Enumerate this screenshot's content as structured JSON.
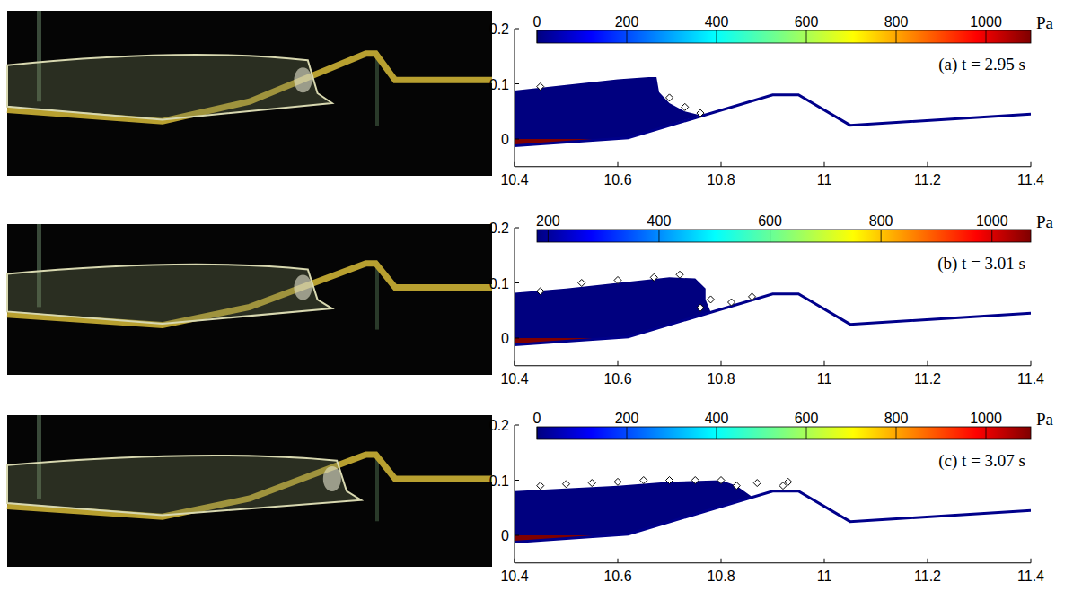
{
  "chart_data": [
    {
      "type": "scatter",
      "annotation": "(a) t = 2.95 s",
      "xlim": [
        10.4,
        11.4
      ],
      "ylim": [
        -0.05,
        0.2
      ],
      "xticks": [
        10.4,
        10.6,
        10.8,
        11,
        11.2,
        11.4
      ],
      "yticks": [
        0,
        0.1,
        0.2
      ],
      "colorbar": {
        "lim": [
          0,
          1100
        ],
        "ticks": [
          0,
          200,
          400,
          600,
          800,
          1000
        ],
        "label": "Pa"
      },
      "series": [
        {
          "type": "area",
          "x": [
            10.4,
            10.5,
            10.6,
            10.66,
            10.675,
            10.68,
            10.7,
            10.73,
            10.76
          ],
          "values": [
            0.088,
            0.098,
            0.108,
            0.112,
            0.112,
            0.085,
            0.065,
            0.05,
            0.043
          ]
        },
        {
          "type": "line",
          "color": "#00008b",
          "line_style": "solid",
          "x": [
            10.4,
            10.62,
            10.9,
            10.95,
            11.05,
            11.4
          ],
          "values": [
            -0.012,
            0.002,
            0.08,
            0.08,
            0.025,
            0.045
          ]
        },
        {
          "type": "scatter",
          "color": "#000000",
          "marker": "diamond",
          "x": [
            10.45,
            10.7,
            10.73,
            10.76
          ],
          "values": [
            0.095,
            0.075,
            0.058,
            0.047
          ]
        }
      ]
    },
    {
      "type": "scatter",
      "annotation": "(b) t = 3.01 s",
      "xlim": [
        10.4,
        11.4
      ],
      "ylim": [
        -0.05,
        0.2
      ],
      "xticks": [
        10.4,
        10.6,
        10.8,
        11,
        11.2,
        11.4
      ],
      "yticks": [
        0,
        0.1,
        0.2
      ],
      "colorbar": {
        "lim": [
          180,
          1070
        ],
        "ticks": [
          200,
          400,
          600,
          800,
          1000
        ],
        "label": "Pa"
      },
      "series": [
        {
          "type": "area",
          "x": [
            10.4,
            10.5,
            10.6,
            10.7,
            10.75,
            10.77,
            10.77,
            10.78
          ],
          "values": [
            0.082,
            0.09,
            0.1,
            0.11,
            0.108,
            0.09,
            0.07,
            0.047
          ]
        },
        {
          "type": "line",
          "color": "#00008b",
          "line_style": "solid",
          "x": [
            10.4,
            10.62,
            10.9,
            10.95,
            11.05,
            11.4
          ],
          "values": [
            -0.012,
            0.002,
            0.08,
            0.08,
            0.025,
            0.045
          ]
        },
        {
          "type": "scatter",
          "color": "#000000",
          "marker": "diamond",
          "x": [
            10.45,
            10.53,
            10.6,
            10.67,
            10.72,
            10.76,
            10.78,
            10.82,
            10.86
          ],
          "values": [
            0.085,
            0.1,
            0.105,
            0.11,
            0.115,
            0.055,
            0.07,
            0.065,
            0.075
          ]
        }
      ]
    },
    {
      "type": "scatter",
      "annotation": "(c) t = 3.07 s",
      "xlim": [
        10.4,
        11.4
      ],
      "ylim": [
        -0.05,
        0.2
      ],
      "xticks": [
        10.4,
        10.6,
        10.8,
        11,
        11.2,
        11.4
      ],
      "yticks": [
        0,
        0.1,
        0.2
      ],
      "colorbar": {
        "lim": [
          0,
          1100
        ],
        "ticks": [
          0,
          200,
          400,
          600,
          800,
          1000
        ],
        "label": "Pa"
      },
      "series": [
        {
          "type": "area",
          "x": [
            10.4,
            10.5,
            10.6,
            10.7,
            10.8,
            10.83,
            10.86,
            10.88
          ],
          "values": [
            0.08,
            0.085,
            0.09,
            0.097,
            0.1,
            0.09,
            0.07,
            0.074
          ]
        },
        {
          "type": "line",
          "color": "#00008b",
          "line_style": "solid",
          "x": [
            10.4,
            10.62,
            10.9,
            10.95,
            11.05,
            11.4
          ],
          "values": [
            -0.012,
            0.002,
            0.08,
            0.08,
            0.025,
            0.045
          ]
        },
        {
          "type": "scatter",
          "color": "#000000",
          "marker": "diamond",
          "x": [
            10.45,
            10.5,
            10.55,
            10.6,
            10.65,
            10.7,
            10.75,
            10.8,
            10.83,
            10.87,
            10.92,
            10.93
          ],
          "values": [
            0.09,
            0.093,
            0.095,
            0.097,
            0.1,
            0.1,
            0.1,
            0.1,
            0.09,
            0.095,
            0.09,
            0.097
          ]
        }
      ]
    }
  ]
}
